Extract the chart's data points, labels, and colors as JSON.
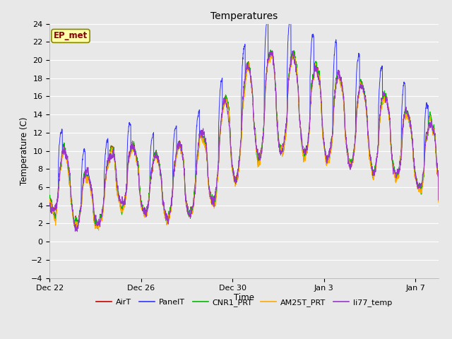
{
  "title": "Temperatures",
  "xlabel": "Time",
  "ylabel": "Temperature (C)",
  "ylim": [
    -4,
    24
  ],
  "yticks": [
    -4,
    -2,
    0,
    2,
    4,
    6,
    8,
    10,
    12,
    14,
    16,
    18,
    20,
    22,
    24
  ],
  "outer_bg_color": "#e8e8e8",
  "plot_bg_color": "#e8e8e8",
  "grid_color": "#ffffff",
  "series": [
    "AirT",
    "PanelT",
    "CNR1_PRT",
    "AM25T_PRT",
    "li77_temp"
  ],
  "colors": [
    "#cc0000",
    "#3333ff",
    "#00bb00",
    "#ffaa00",
    "#9933cc"
  ],
  "watermark_text": "EP_met",
  "watermark_bg": "#ffffaa",
  "watermark_fg": "#880000",
  "xtick_labels": [
    "Dec 22",
    "Dec 26",
    "Dec 30",
    "Jan 3",
    "Jan 7"
  ],
  "xtick_day_offsets": [
    0,
    4,
    8,
    12,
    16
  ],
  "n_days": 17,
  "points_per_day": 144
}
